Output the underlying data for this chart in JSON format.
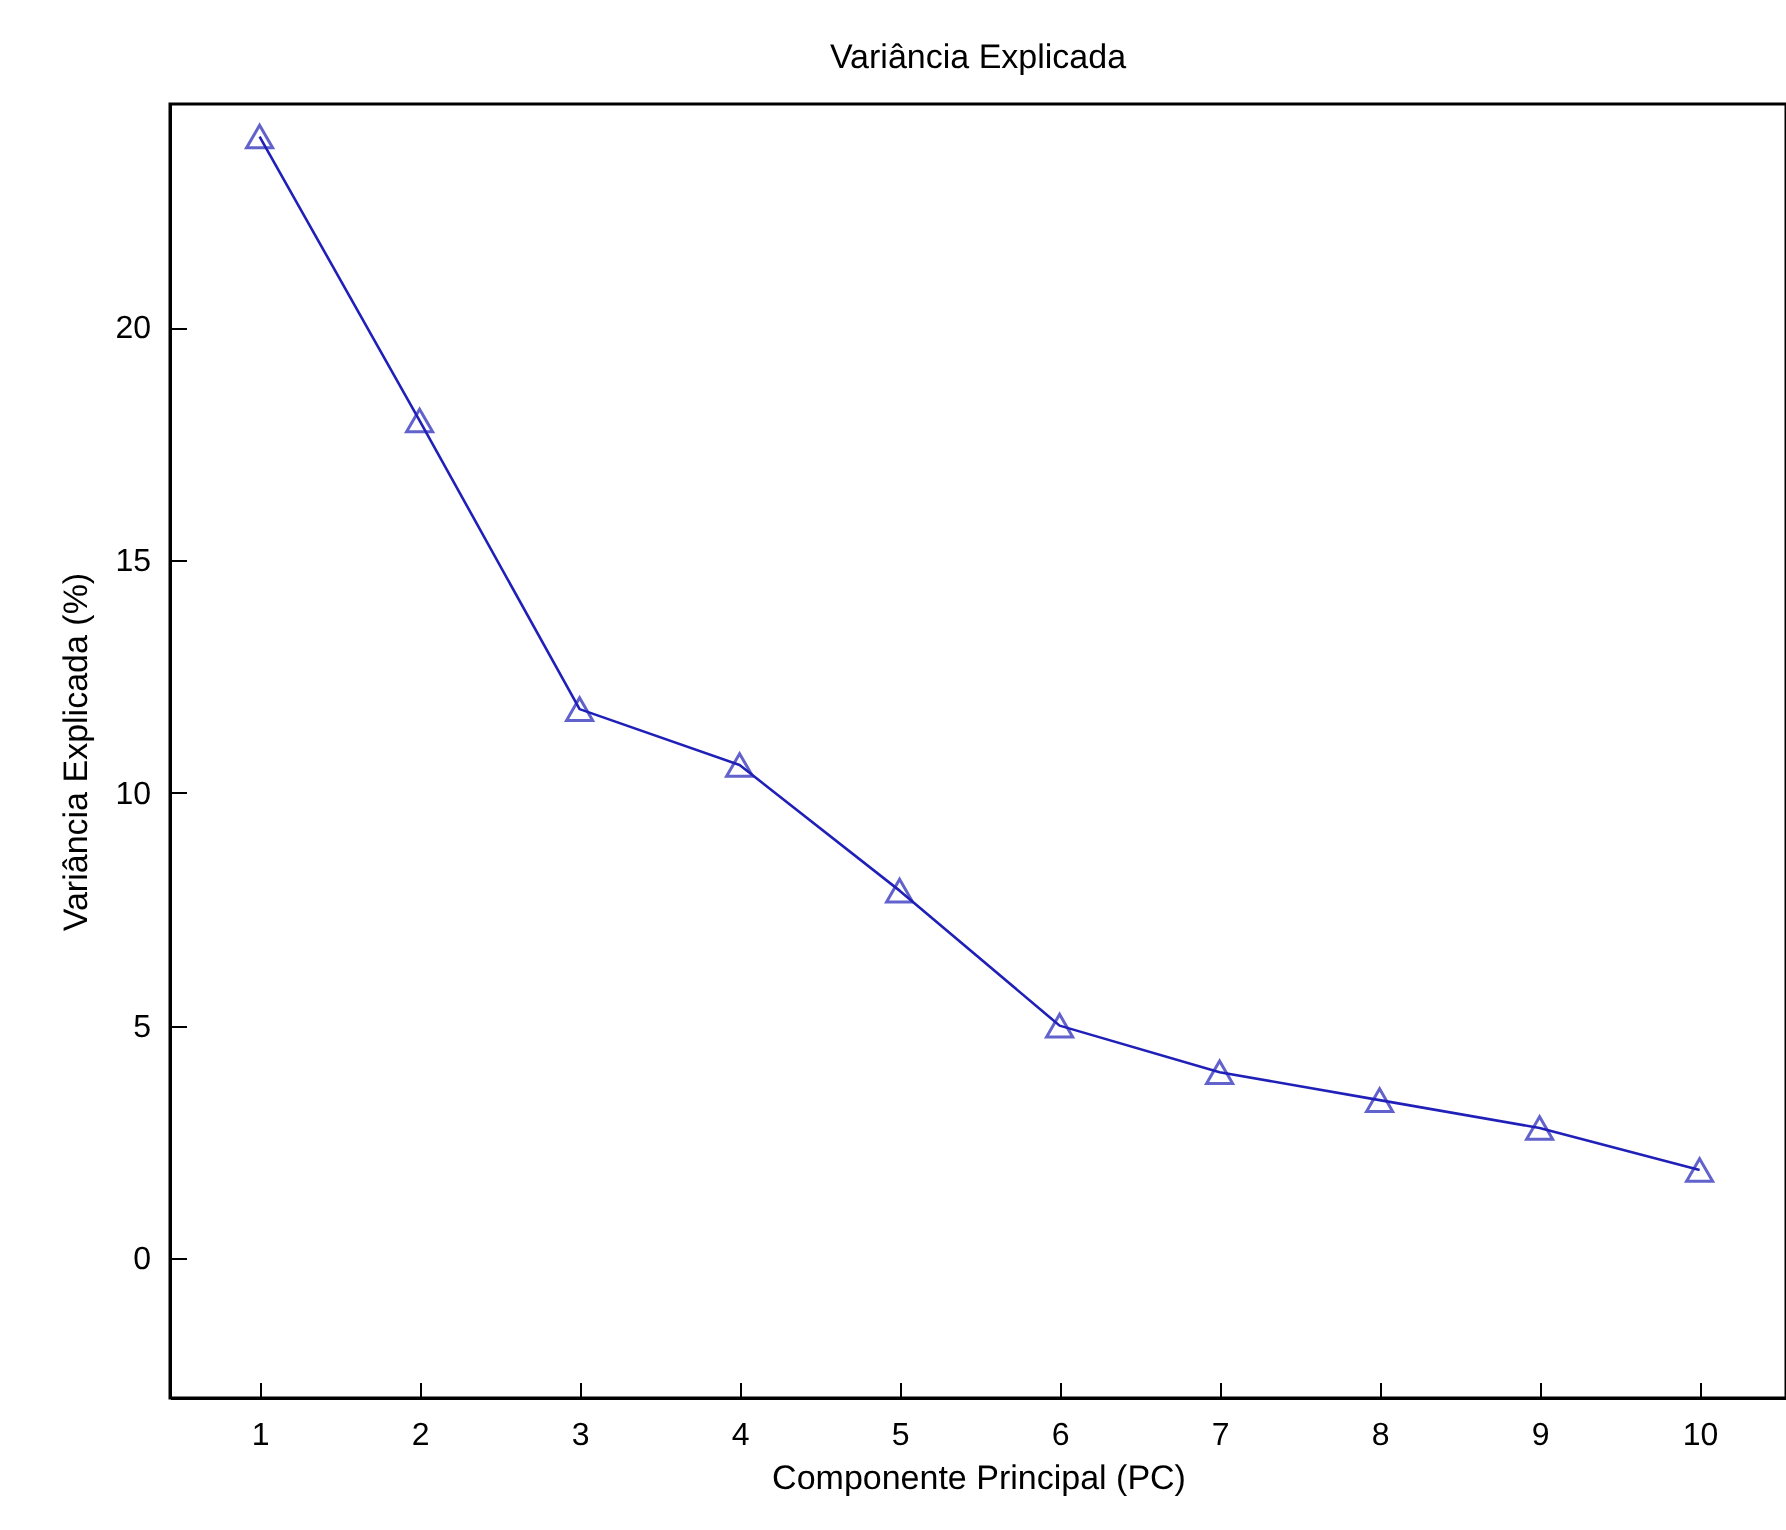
{
  "chart_data": {
    "type": "line",
    "title": "Variância Explicada",
    "xlabel": "Componente Principal (PC)",
    "ylabel": "Variância Explicada (%)",
    "x": [
      1,
      2,
      3,
      4,
      5,
      6,
      7,
      8,
      9,
      10
    ],
    "series": [
      {
        "color": "#2020b8",
        "values": [
          24.1,
          18.0,
          11.8,
          10.6,
          7.9,
          5.0,
          4.0,
          3.4,
          2.8,
          1.9
        ]
      }
    ],
    "xlim": [
      0.44,
      10.54
    ],
    "xticks": [
      1,
      2,
      3,
      4,
      5,
      6,
      7,
      8,
      9,
      10
    ],
    "ylim": [
      -3,
      24.8
    ],
    "yticks": [
      0,
      5,
      10,
      15,
      20
    ],
    "grid": false,
    "legend": false,
    "marker": "triangle",
    "line_style": "solid"
  }
}
